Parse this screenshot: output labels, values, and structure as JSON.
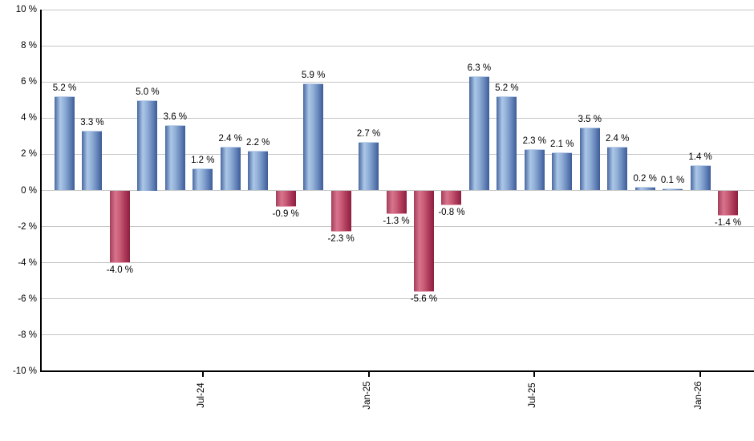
{
  "chart_data": {
    "type": "bar",
    "title": "",
    "xlabel": "",
    "ylabel": "",
    "ylim": [
      -10,
      10
    ],
    "grid": true,
    "legend": "none",
    "values": [
      5.2,
      3.3,
      -4.0,
      5.0,
      3.6,
      1.2,
      2.4,
      2.2,
      -0.9,
      5.9,
      -2.3,
      2.7,
      -1.3,
      -5.6,
      -0.8,
      6.3,
      5.2,
      2.3,
      2.1,
      3.5,
      2.4,
      0.2,
      0.1,
      1.4,
      -1.4
    ],
    "labels": [
      "5.2 %",
      "3.3 %",
      "-4.0 %",
      "5.0 %",
      "3.6 %",
      "1.2 %",
      "2.4 %",
      "2.2 %",
      "-0.9 %",
      "5.9 %",
      "-2.3 %",
      "2.7 %",
      "-1.3 %",
      "-5.6 %",
      "-0.8 %",
      "6.3 %",
      "5.2 %",
      "2.3 %",
      "2.1 %",
      "3.5 %",
      "2.4 %",
      "0.2 %",
      "0.1 %",
      "1.4 %",
      "-1.4 %"
    ],
    "y_axis": {
      "ticks": [
        {
          "value": 10,
          "label": "10 %"
        },
        {
          "value": 8,
          "label": "8 %"
        },
        {
          "value": 6,
          "label": "6 %"
        },
        {
          "value": 4,
          "label": "4 %"
        },
        {
          "value": 2,
          "label": "2 %"
        },
        {
          "value": 0,
          "label": "0 %"
        },
        {
          "value": -2,
          "label": "-2 %"
        },
        {
          "value": -4,
          "label": "-4 %"
        },
        {
          "value": -6,
          "label": "-6 %"
        },
        {
          "value": -8,
          "label": "-8 %"
        },
        {
          "value": -10,
          "label": "-10 %"
        }
      ]
    },
    "x_axis": {
      "ticks": [
        {
          "label": "Jul-24",
          "bar_index": 5
        },
        {
          "label": "Jan-25",
          "bar_index": 11
        },
        {
          "label": "Jul-25",
          "bar_index": 17
        },
        {
          "label": "Jan-26",
          "bar_index": 23
        }
      ]
    },
    "colors": {
      "positive_bar_edge": "#3d5c96",
      "positive_bar_highlight": "#abc6e8",
      "negative_bar_edge": "#8c1f40",
      "negative_bar_highlight": "#d8748e",
      "gridline": "#c6c6c6",
      "axis": "#000000",
      "label_text": "#000000"
    }
  }
}
